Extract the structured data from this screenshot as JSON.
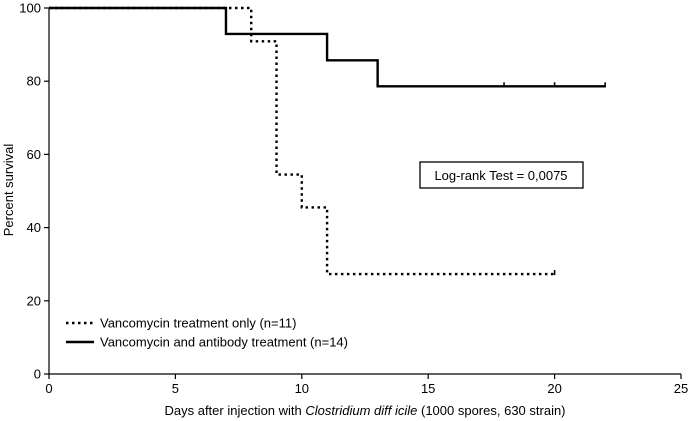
{
  "chart_data": {
    "type": "line",
    "subtype": "kaplan-meier survival curve",
    "xlabel_parts": [
      "Days after injection with ",
      "Clostridium diff icile",
      " (1000 spores, 630 strain)"
    ],
    "ylabel": "Percent survival",
    "xlim": [
      0,
      25
    ],
    "ylim": [
      0,
      100
    ],
    "x_ticks": [
      0,
      5,
      10,
      15,
      20,
      25
    ],
    "y_ticks": [
      0,
      20,
      40,
      60,
      80,
      100
    ],
    "grid": false,
    "legend_position": "bottom-left",
    "annotation": "Log-rank Test = 0,0075",
    "series": [
      {
        "name": "Vancomycin treatment only (n=11)",
        "style": "dotted",
        "color": "#000000",
        "x": [
          0,
          8,
          8,
          9,
          9,
          10,
          10,
          11,
          11,
          20
        ],
        "y": [
          100,
          100,
          90.9,
          90.9,
          54.5,
          54.5,
          45.5,
          45.5,
          27.3,
          27.3
        ],
        "censored_x": [
          20
        ]
      },
      {
        "name": "Vancomycin and antibody treatment (n=14)",
        "style": "solid",
        "color": "#000000",
        "x": [
          0,
          7,
          7,
          11,
          11,
          13,
          13,
          22
        ],
        "y": [
          100,
          100,
          92.9,
          92.9,
          85.7,
          85.7,
          78.6,
          78.6
        ],
        "censored_x": [
          18,
          20,
          22
        ]
      }
    ]
  }
}
